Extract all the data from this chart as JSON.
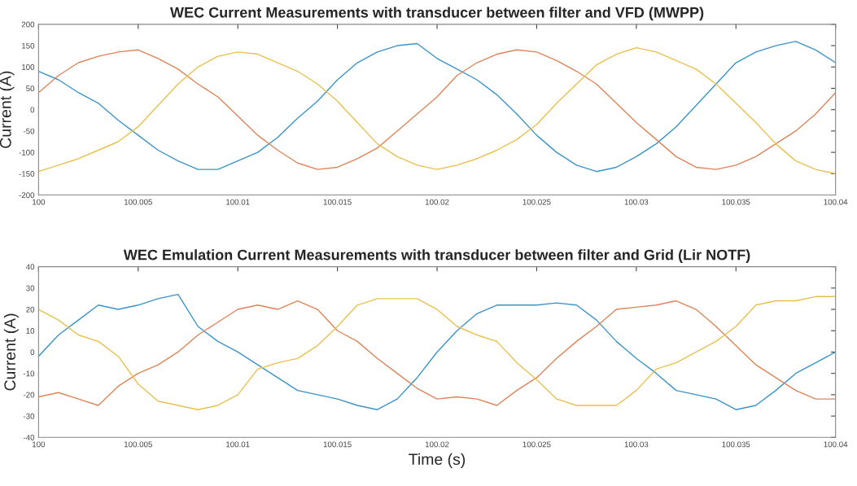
{
  "chart_data": [
    {
      "type": "line",
      "title": "WEC Current Measurements with transducer between filter and VFD (MWPP)",
      "ylabel": "Current (A)",
      "x": [
        100,
        100.001,
        100.002,
        100.003,
        100.004,
        100.005,
        100.006,
        100.007,
        100.008,
        100.009,
        100.01,
        100.011,
        100.012,
        100.013,
        100.014,
        100.015,
        100.016,
        100.017,
        100.018,
        100.019,
        100.02,
        100.021,
        100.022,
        100.023,
        100.024,
        100.025,
        100.026,
        100.027,
        100.028,
        100.029,
        100.03,
        100.031,
        100.032,
        100.033,
        100.034,
        100.035,
        100.036,
        100.037,
        100.038,
        100.039,
        100.04
      ],
      "series": [
        {
          "color": "#3a94c8",
          "values": [
            90,
            70,
            40,
            15,
            -25,
            -60,
            -95,
            -120,
            -140,
            -140,
            -120,
            -100,
            -65,
            -20,
            20,
            70,
            110,
            135,
            150,
            155,
            120,
            95,
            70,
            35,
            -10,
            -60,
            -100,
            -130,
            -145,
            -135,
            -110,
            -80,
            -40,
            10,
            60,
            110,
            135,
            150,
            160,
            140,
            110
          ]
        },
        {
          "color": "#dd8558",
          "values": [
            40,
            80,
            110,
            125,
            135,
            140,
            120,
            95,
            60,
            30,
            -15,
            -60,
            -95,
            -125,
            -140,
            -135,
            -115,
            -90,
            -50,
            -10,
            30,
            80,
            110,
            130,
            140,
            135,
            115,
            90,
            60,
            15,
            -30,
            -70,
            -110,
            -135,
            -140,
            -130,
            -110,
            -80,
            -50,
            -10,
            40
          ]
        },
        {
          "color": "#e9c050",
          "values": [
            -145,
            -130,
            -115,
            -95,
            -75,
            -40,
            10,
            60,
            100,
            125,
            135,
            130,
            110,
            90,
            60,
            20,
            -30,
            -80,
            -110,
            -130,
            -140,
            -130,
            -115,
            -95,
            -70,
            -35,
            15,
            60,
            105,
            130,
            145,
            135,
            115,
            95,
            60,
            15,
            -30,
            -80,
            -120,
            -140,
            -150
          ]
        }
      ],
      "xlim": [
        100,
        100.04
      ],
      "xticks": [
        100,
        100.005,
        100.01,
        100.015,
        100.02,
        100.025,
        100.03,
        100.035,
        100.04
      ],
      "ylim": [
        -200,
        200
      ],
      "yticks": [
        -200,
        -150,
        -100,
        -50,
        0,
        50,
        100,
        150,
        200
      ],
      "grid": false,
      "legend": false
    },
    {
      "type": "line",
      "title": "WEC Emulation Current Measurements with transducer between filter and Grid (Lir NOTF)",
      "xlabel": "Time (s)",
      "ylabel": "Current (A)",
      "x": [
        100,
        100.001,
        100.002,
        100.003,
        100.004,
        100.005,
        100.006,
        100.007,
        100.008,
        100.009,
        100.01,
        100.011,
        100.012,
        100.013,
        100.014,
        100.015,
        100.016,
        100.017,
        100.018,
        100.019,
        100.02,
        100.021,
        100.022,
        100.023,
        100.024,
        100.025,
        100.026,
        100.027,
        100.028,
        100.029,
        100.03,
        100.031,
        100.032,
        100.033,
        100.034,
        100.035,
        100.036,
        100.037,
        100.038,
        100.039,
        100.04
      ],
      "series": [
        {
          "color": "#3a94c8",
          "values": [
            -2,
            8,
            15,
            22,
            20,
            22,
            25,
            27,
            12,
            5,
            0,
            -6,
            -12,
            -18,
            -20,
            -22,
            -25,
            -27,
            -22,
            -12,
            0,
            10,
            18,
            22,
            22,
            22,
            23,
            22,
            15,
            5,
            -3,
            -10,
            -18,
            -20,
            -22,
            -27,
            -25,
            -18,
            -10,
            -5,
            0
          ]
        },
        {
          "color": "#dd8558",
          "values": [
            -21,
            -19,
            -22,
            -25,
            -16,
            -10,
            -6,
            0,
            8,
            14,
            20,
            22,
            20,
            24,
            20,
            10,
            5,
            -3,
            -10,
            -17,
            -22,
            -21,
            -22,
            -25,
            -18,
            -12,
            -3,
            5,
            12,
            20,
            21,
            22,
            24,
            20,
            12,
            3,
            -6,
            -12,
            -18,
            -22,
            -22
          ]
        },
        {
          "color": "#e9c050",
          "values": [
            20,
            15,
            8,
            5,
            -2,
            -15,
            -23,
            -25,
            -27,
            -25,
            -20,
            -8,
            -5,
            -3,
            3,
            12,
            22,
            25,
            25,
            25,
            20,
            12,
            8,
            5,
            -5,
            -13,
            -22,
            -25,
            -25,
            -25,
            -18,
            -8,
            -5,
            0,
            5,
            12,
            22,
            24,
            24,
            26,
            26
          ]
        }
      ],
      "xlim": [
        100,
        100.04
      ],
      "xticks": [
        100,
        100.005,
        100.01,
        100.015,
        100.02,
        100.025,
        100.03,
        100.035,
        100.04
      ],
      "ylim": [
        -40,
        40
      ],
      "yticks": [
        -40,
        -30,
        -20,
        -10,
        0,
        10,
        20,
        30,
        40
      ],
      "grid": false,
      "legend": false
    }
  ]
}
